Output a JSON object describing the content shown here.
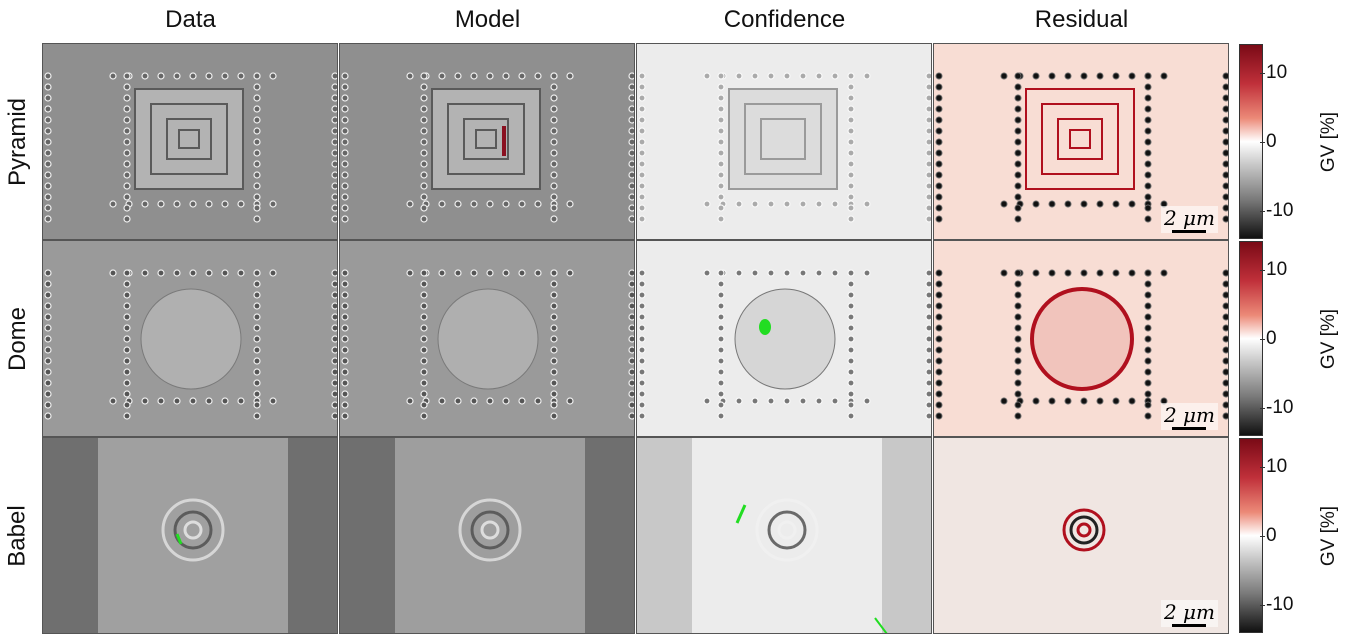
{
  "columns": [
    "Data",
    "Model",
    "Confidence",
    "Residual"
  ],
  "rows": [
    "Pyramid",
    "Dome",
    "Babel"
  ],
  "scale_bar": "2 μm",
  "colorbar": {
    "label": "GV [%]",
    "ticks": [
      "10",
      "0",
      "-10"
    ],
    "range": [
      -15,
      15
    ]
  },
  "colors": {
    "residual_positive": "#b0101e",
    "residual_negative": "#111111",
    "confidence_marker": "#22dd22"
  }
}
